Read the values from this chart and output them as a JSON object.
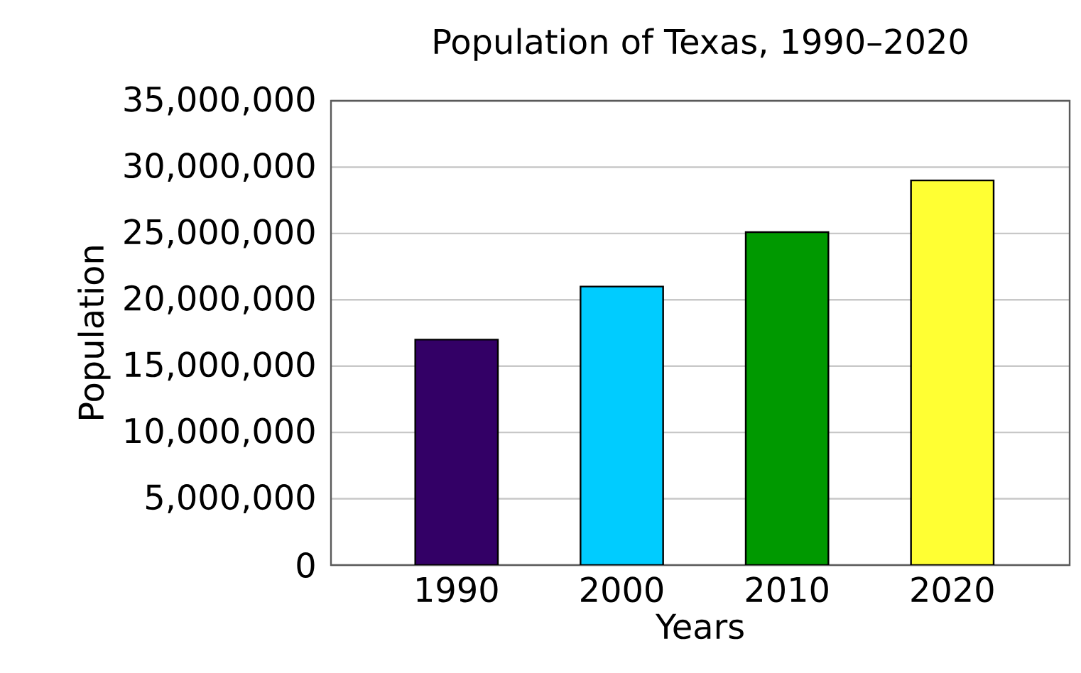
{
  "chart_data": {
    "type": "bar",
    "title": "Population of Texas, 1990–2020",
    "xlabel": "Years",
    "ylabel": "Population",
    "categories": [
      "1990",
      "2000",
      "2010",
      "2020"
    ],
    "values": [
      17000000,
      21000000,
      25100000,
      29000000
    ],
    "colors": [
      "#330066",
      "#00ccff",
      "#009900",
      "#ffff33"
    ],
    "ylim": [
      0,
      35000000
    ],
    "yticks": [
      0,
      {
        "value": 5000000,
        "label": "5,000,000"
      },
      {
        "value": 10000000,
        "label": "10,000,000"
      },
      {
        "value": 15000000,
        "label": "15,000,000"
      },
      {
        "value": 20000000,
        "label": "20,000,000"
      },
      {
        "value": 25000000,
        "label": "25,000,000"
      },
      {
        "value": 30000000,
        "label": "30,000,000"
      },
      {
        "value": 35000000,
        "label": "35,000,000"
      }
    ],
    "grid": "y"
  }
}
